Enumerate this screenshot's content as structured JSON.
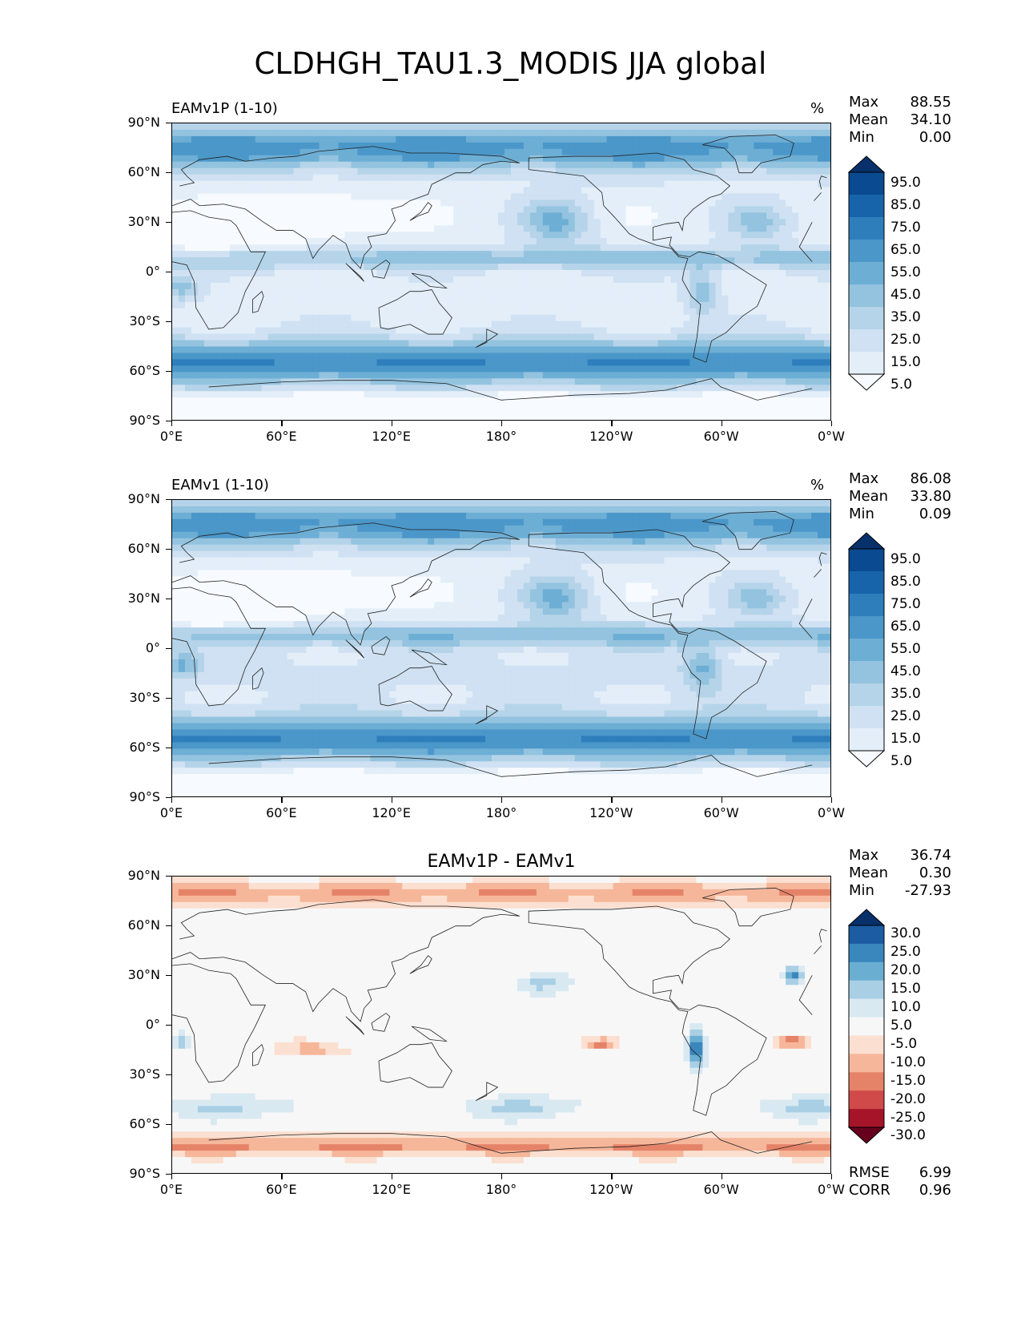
{
  "title": "CLDHGH_TAU1.3_MODIS JJA global",
  "x_ticks": [
    "0°E",
    "60°E",
    "120°E",
    "180°",
    "120°W",
    "60°W",
    "0°W"
  ],
  "y_ticks": [
    "90°N",
    "60°N",
    "30°N",
    "0°",
    "30°S",
    "60°S",
    "90°S"
  ],
  "panels": [
    {
      "id": "test",
      "title": "EAMv1P (1-10)",
      "units": "%",
      "stats": {
        "Max": "88.55",
        "Mean": "34.10",
        "Min": "0.00"
      },
      "colorbar_labels": [
        "95.0",
        "85.0",
        "75.0",
        "65.0",
        "55.0",
        "45.0",
        "35.0",
        "25.0",
        "15.0",
        "5.0"
      ],
      "colors": [
        "#f7fbff",
        "#e3eef9",
        "#cfe1f2",
        "#b5d4e9",
        "#93c3df",
        "#6daed5",
        "#4b97c9",
        "#2f7ebc",
        "#1864aa",
        "#0a4a90",
        "#08306b"
      ]
    },
    {
      "id": "ref",
      "title": "EAMv1 (1-10)",
      "units": "%",
      "stats": {
        "Max": "86.08",
        "Mean": "33.80",
        "Min": "0.09"
      },
      "colorbar_labels": [
        "95.0",
        "85.0",
        "75.0",
        "65.0",
        "55.0",
        "45.0",
        "35.0",
        "25.0",
        "15.0",
        "5.0"
      ],
      "colors": [
        "#f7fbff",
        "#e3eef9",
        "#cfe1f2",
        "#b5d4e9",
        "#93c3df",
        "#6daed5",
        "#4b97c9",
        "#2f7ebc",
        "#1864aa",
        "#0a4a90",
        "#08306b"
      ]
    },
    {
      "id": "diff",
      "title": "EAMv1P - EAMv1",
      "units": "",
      "stats": {
        "Max": "36.74",
        "Mean": "0.30",
        "Min": "-27.93"
      },
      "colorbar_labels": [
        "30.0",
        "25.0",
        "20.0",
        "15.0",
        "10.0",
        "5.0",
        "-5.0",
        "-10.0",
        "-15.0",
        "-20.0",
        "-25.0",
        "-30.0"
      ],
      "colors": [
        "#67001f",
        "#a51429",
        "#d04a4a",
        "#e58368",
        "#f6b69a",
        "#fbe0d1",
        "#f7f7f7",
        "#d9e9f2",
        "#a9cfe5",
        "#6aaed2",
        "#3a87bd",
        "#1b5ca3",
        "#08306b"
      ],
      "rmse": {
        "label": "RMSE",
        "value": "6.99"
      },
      "corr": {
        "label": "CORR",
        "value": "0.96"
      }
    }
  ]
}
